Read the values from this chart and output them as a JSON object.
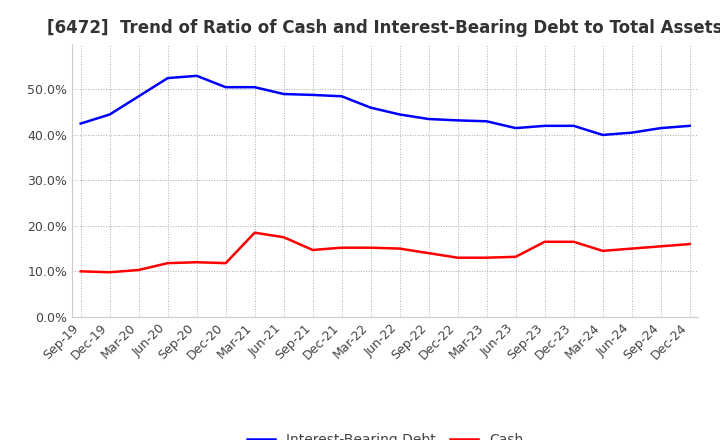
{
  "title": "[6472]  Trend of Ratio of Cash and Interest-Bearing Debt to Total Assets",
  "labels": [
    "Sep-19",
    "Dec-19",
    "Mar-20",
    "Jun-20",
    "Sep-20",
    "Dec-20",
    "Mar-21",
    "Jun-21",
    "Sep-21",
    "Dec-21",
    "Mar-22",
    "Jun-22",
    "Sep-22",
    "Dec-22",
    "Mar-23",
    "Jun-23",
    "Sep-23",
    "Dec-23",
    "Mar-24",
    "Jun-24",
    "Sep-24",
    "Dec-24"
  ],
  "cash": [
    10.0,
    9.8,
    10.3,
    11.8,
    12.0,
    11.8,
    18.5,
    17.5,
    14.7,
    15.2,
    15.2,
    15.0,
    14.0,
    13.0,
    13.0,
    13.2,
    16.5,
    16.5,
    14.5,
    15.0,
    15.5,
    16.0
  ],
  "ibd": [
    42.5,
    44.5,
    48.5,
    52.5,
    53.0,
    50.5,
    50.5,
    49.0,
    48.8,
    48.5,
    46.0,
    44.5,
    43.5,
    43.2,
    43.0,
    41.5,
    42.0,
    42.0,
    40.0,
    40.5,
    41.5,
    42.0
  ],
  "cash_color": "#ff0000",
  "ibd_color": "#0000ff",
  "background_color": "#ffffff",
  "plot_bg_color": "#ffffff",
  "grid_color": "#aaaaaa",
  "title_color": "#333333",
  "tick_color": "#444444",
  "ylim": [
    0,
    60
  ],
  "yticks": [
    0,
    10,
    20,
    30,
    40,
    50
  ],
  "title_fontsize": 12,
  "axis_fontsize": 9,
  "legend_fontsize": 10,
  "legend_labels": [
    "Cash",
    "Interest-Bearing Debt"
  ],
  "line_width": 1.8
}
